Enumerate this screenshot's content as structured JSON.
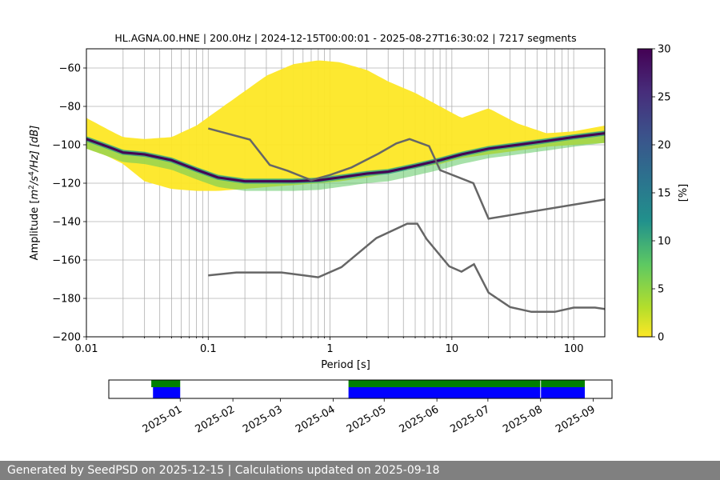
{
  "title": "HL.AGNA.00.HNE | 200.0Hz | 2024-12-15T00:00:01 - 2025-08-27T16:30:02 | 7217 segments",
  "footer": "Generated by SeedPSD on 2025-12-15 | Calculations updated on 2025-09-18",
  "chart_data": [
    {
      "type": "heatmap",
      "title": "HL.AGNA.00.HNE | 200.0Hz | 2024-12-15T00:00:01 - 2025-08-27T16:30:02 | 7217 segments",
      "xlabel": "Period [s]",
      "ylabel_parts": {
        "prefix": "Amplitude [",
        "m": "m",
        "exp2": "2",
        "s": "/s",
        "exp4": "4",
        "rest": "/Hz] [dB]"
      },
      "x_scale": "log",
      "xlim": [
        0.01,
        180
      ],
      "ylim": [
        -200,
        -50
      ],
      "x_ticks": [
        0.01,
        0.1,
        1,
        10,
        100
      ],
      "x_tick_labels": [
        "0.01",
        "0.1",
        "1",
        "10",
        "100"
      ],
      "y_ticks": [
        -200,
        -180,
        -160,
        -140,
        -120,
        -100,
        -80,
        -60
      ],
      "y_tick_labels": [
        "−200",
        "−180",
        "−160",
        "−140",
        "−120",
        "−100",
        "−80",
        "−60"
      ],
      "grid": true,
      "colorbar": {
        "label": "[%]",
        "range": [
          0,
          30
        ],
        "ticks": [
          0,
          5,
          10,
          15,
          20,
          25,
          30
        ],
        "colormap": "viridis-reversed"
      },
      "mode_curve": {
        "periods": [
          0.01,
          0.015,
          0.02,
          0.03,
          0.05,
          0.08,
          0.12,
          0.2,
          0.3,
          0.5,
          0.8,
          1.2,
          2,
          3,
          5,
          8,
          12,
          20,
          35,
          60,
          100,
          180
        ],
        "db": [
          -97,
          -101,
          -104,
          -105,
          -108,
          -113,
          -117,
          -119,
          -119,
          -119,
          -118.5,
          -117,
          -115,
          -114,
          -111,
          -108,
          -105,
          -102,
          -100,
          -98,
          -96,
          -94
        ]
      },
      "psd_cloud": {
        "periods": [
          0.01,
          0.015,
          0.02,
          0.03,
          0.05,
          0.08,
          0.12,
          0.2,
          0.3,
          0.5,
          0.8,
          1.2,
          2,
          3,
          5,
          8,
          12,
          20,
          35,
          60,
          100,
          180
        ],
        "upper_db": [
          -86,
          -92,
          -96,
          -97,
          -96,
          -90,
          -82,
          -72,
          -64,
          -58,
          -56,
          -57,
          -61,
          -67,
          -73,
          -80,
          -86,
          -81,
          -89,
          -94,
          -93,
          -90
        ],
        "lower_db": [
          -102,
          -106,
          -110,
          -119,
          -123,
          -124,
          -124,
          -123,
          -122,
          -121,
          -120,
          -119,
          -117,
          -115,
          -112,
          -110,
          -107,
          -105,
          -103,
          -101,
          -100,
          -99
        ]
      },
      "series": [
        {
          "name": "",
          "x": [
            0.1,
            0.22,
            0.32,
            0.45,
            0.7,
            1.0,
            1.5,
            2.5,
            3.5,
            4.5,
            6.5,
            8,
            15,
            20,
            180
          ],
          "y": [
            -91.5,
            -97.3,
            -110.5,
            -113.6,
            -118.4,
            -115.7,
            -111.8,
            -104.6,
            -99.3,
            -97.0,
            -100.7,
            -113.2,
            -120.0,
            -138.5,
            -128.5
          ],
          "color": "#666666"
        },
        {
          "name": "",
          "x": [
            0.1,
            0.17,
            0.4,
            0.8,
            1.24,
            2.4,
            4.3,
            5.2,
            6.2,
            9.5,
            12,
            15.2,
            20,
            30,
            45,
            70,
            100,
            150,
            180
          ],
          "y": [
            -168,
            -166.5,
            -166.5,
            -169,
            -163.7,
            -148.6,
            -141.1,
            -141.1,
            -149.1,
            -163.3,
            -166.1,
            -162.2,
            -177.0,
            -184.5,
            -187.0,
            -187.0,
            -184.8,
            -184.8,
            -185.5
          ],
          "color": "#666666"
        }
      ]
    },
    {
      "type": "bar",
      "title": "",
      "x_type": "date",
      "xlim": [
        "2024-11-20",
        "2025-09-12"
      ],
      "x_tick_labels": [
        "2025-01",
        "2025-02",
        "2025-03",
        "2025-04",
        "2025-05",
        "2025-06",
        "2025-07",
        "2025-08",
        "2025-09"
      ],
      "x_ticks": [
        "2025-01-01",
        "2025-02-01",
        "2025-03-01",
        "2025-04-01",
        "2025-05-01",
        "2025-06-01",
        "2025-07-01",
        "2025-08-01",
        "2025-09-01"
      ],
      "series": [
        {
          "name": "",
          "color": "#008000",
          "intervals": [
            [
              "2024-12-15",
              "2025-01-01"
            ],
            [
              "2025-04-10",
              "2025-08-27"
            ]
          ]
        },
        {
          "name": "",
          "color": "#0000ff",
          "intervals": [
            [
              "2024-12-16",
              "2025-01-01"
            ],
            [
              "2025-04-10",
              "2025-08-27"
            ]
          ]
        }
      ],
      "markers": [
        "2025-08-01"
      ]
    }
  ]
}
